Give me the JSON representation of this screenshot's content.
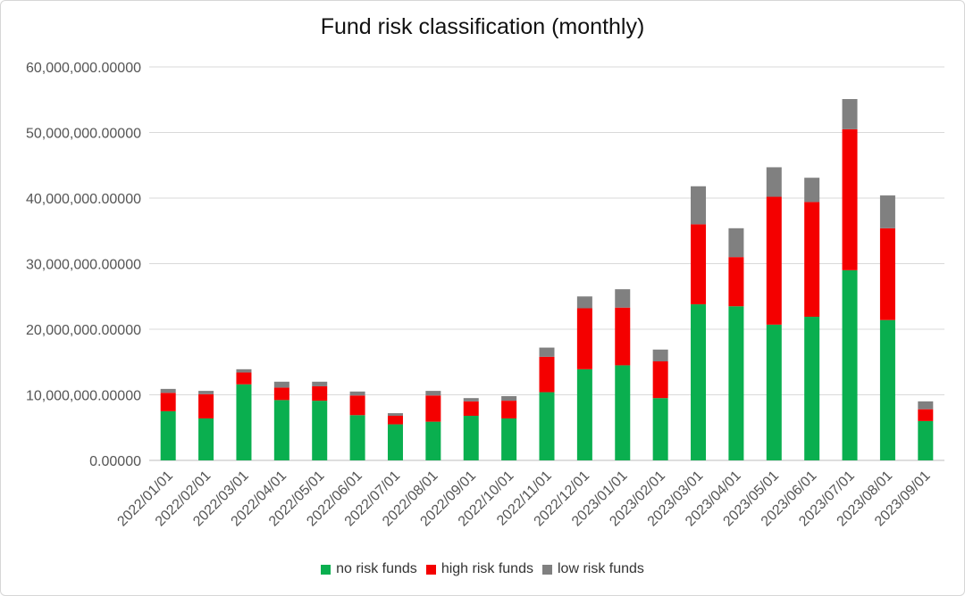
{
  "chart_data": {
    "type": "bar",
    "stacked": true,
    "title": "Fund risk classification (monthly)",
    "xlabel": "",
    "ylabel": "",
    "ylim": [
      0,
      60000000
    ],
    "yticks": [
      0,
      10000000,
      20000000,
      30000000,
      40000000,
      50000000,
      60000000
    ],
    "ytick_labels": [
      "0.00000",
      "10,000,000.00000",
      "20,000,000.00000",
      "30,000,000.00000",
      "40,000,000.00000",
      "50,000,000.00000",
      "60,000,000.00000"
    ],
    "grid": true,
    "legend_position": "bottom",
    "categories": [
      "2022/01/01",
      "2022/02/01",
      "2022/03/01",
      "2022/04/01",
      "2022/05/01",
      "2022/06/01",
      "2022/07/01",
      "2022/08/01",
      "2022/09/01",
      "2022/10/01",
      "2022/11/01",
      "2022/12/01",
      "2023/01/01",
      "2023/02/01",
      "2023/03/01",
      "2023/04/01",
      "2023/05/01",
      "2023/06/01",
      "2023/07/01",
      "2023/08/01",
      "2023/09/01"
    ],
    "series": [
      {
        "name": "no risk funds",
        "color": "#0aaf4f",
        "values": [
          7500000,
          6400000,
          11600000,
          9200000,
          9100000,
          6900000,
          5500000,
          5900000,
          6800000,
          6400000,
          10400000,
          13900000,
          14500000,
          9500000,
          23800000,
          23500000,
          20700000,
          21900000,
          29000000,
          21400000,
          6000000
        ]
      },
      {
        "name": "high risk funds",
        "color": "#f40000",
        "values": [
          2800000,
          3700000,
          1800000,
          1900000,
          2200000,
          3000000,
          1300000,
          4000000,
          2200000,
          2700000,
          5400000,
          9300000,
          8800000,
          5600000,
          12200000,
          7500000,
          19500000,
          17500000,
          21500000,
          14000000,
          1800000
        ]
      },
      {
        "name": "low risk funds",
        "color": "#808080",
        "values": [
          600000,
          500000,
          500000,
          900000,
          700000,
          600000,
          400000,
          700000,
          500000,
          700000,
          1400000,
          1800000,
          2800000,
          1800000,
          5800000,
          4400000,
          4500000,
          3700000,
          4600000,
          5000000,
          1200000
        ]
      }
    ]
  }
}
